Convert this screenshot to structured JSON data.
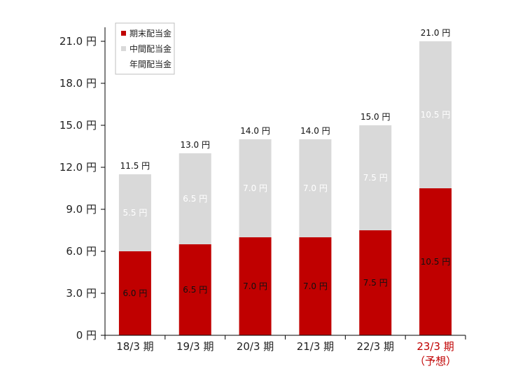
{
  "chart_data": {
    "type": "bar",
    "stacked": true,
    "categories": [
      "18/3 期",
      "19/3 期",
      "20/3 期",
      "21/3 期",
      "22/3 期",
      "23/3 期"
    ],
    "category_notes": [
      "",
      "",
      "",
      "",
      "",
      "（予想）"
    ],
    "highlight_category_index": 5,
    "series": [
      {
        "name": "中間配当金",
        "values": [
          5.5,
          6.5,
          7.0,
          7.0,
          7.5,
          10.5
        ],
        "color": "#d9d9d9",
        "labels": [
          "5.5 円",
          "6.5 円",
          "7.0 円",
          "7.0 円",
          "7.5 円",
          "10.5 円"
        ]
      },
      {
        "name": "期末配当金",
        "values": [
          6.0,
          6.5,
          7.0,
          7.0,
          7.5,
          10.5
        ],
        "color": "#c00000",
        "labels": [
          "6.0 円",
          "6.5 円",
          "7.0 円",
          "7.0 円",
          "7.5 円",
          "10.5 円"
        ]
      }
    ],
    "totals": [
      11.5,
      13.0,
      14.0,
      14.0,
      15.0,
      21.0
    ],
    "total_labels": [
      "11.5 円",
      "13.0 円",
      "14.0 円",
      "14.0 円",
      "15.0 円",
      "21.0 円"
    ],
    "legend": [
      {
        "name": "期末配当金",
        "color": "#c00000"
      },
      {
        "name": "中間配当金",
        "color": "#d9d9d9"
      },
      {
        "name": "年間配当金",
        "color": ""
      }
    ],
    "yticks": [
      0,
      3,
      6,
      9,
      12,
      15,
      18,
      21
    ],
    "ytick_labels": [
      "0 円",
      "3.0 円",
      "6.0 円",
      "9.0 円",
      "12.0 円",
      "15.0 円",
      "18.0 円",
      "21.0 円"
    ],
    "ylim": [
      0,
      21
    ],
    "grid": false,
    "legend_position": "top-left",
    "highlight_color": "#c00000"
  }
}
